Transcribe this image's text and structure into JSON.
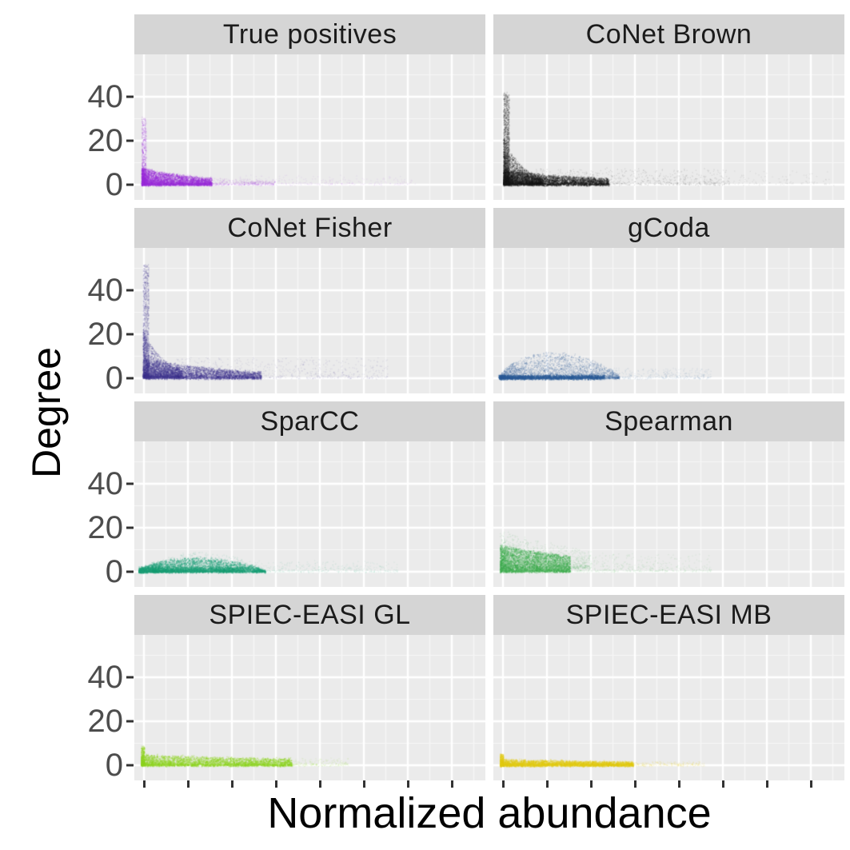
{
  "figure": {
    "x_axis_label": "Normalized abundance",
    "y_axis_label": "Degree",
    "y_tick_labels": [
      "40",
      "20",
      "0"
    ],
    "y_tick_values": [
      40,
      20,
      0
    ]
  },
  "style": {
    "panel_bg": "#EBEBEB",
    "strip_bg": "#D5D5D5",
    "grid_major": "#FFFFFF",
    "grid_minor": "rgba(255,255,255,0.6)",
    "tick_color": "#333333",
    "tick_label_color": "#4d4d4d"
  },
  "chart_data": {
    "type": "scatter",
    "layout": "facet-grid-4x2",
    "xlabel": "Normalized abundance",
    "ylabel": "Degree",
    "y_breaks": [
      0,
      20,
      40
    ],
    "ylim": [
      0,
      59
    ],
    "x_axis_numeric_labels": "none (ticks only)",
    "grid": "major white + minor white on grey panel",
    "facets": [
      {
        "title": "True positives",
        "color": "#9B30D9",
        "y_max_approx": 32,
        "x_tail_frac": 0.8,
        "shape": "dense low wedge at left (Degree 0-8), thin vertical spike to ~32 at lowest abundance, sparse tail rightward",
        "blobs": [
          {
            "n": 800,
            "x0": 0.02,
            "xw": 0.013,
            "xp": 1.1,
            "y0": 0.4,
            "ys": 30,
            "yp": 2.6,
            "a": 0.18,
            "s": 1.4
          },
          {
            "n": 3400,
            "x0": 0.02,
            "xw": 0.2,
            "xp": 1.5,
            "y0": 0.2,
            "ys": 7.5,
            "yp": 1.8,
            "dk": 1.0,
            "a": 0.3,
            "s": 1.5
          },
          {
            "n": 800,
            "x0": 0.07,
            "xw": 0.33,
            "xp": 1.3,
            "y0": 0.3,
            "ys": 6,
            "yp": 2.3,
            "dk": 1.4,
            "a": 0.12,
            "s": 1.4
          },
          {
            "n": 280,
            "x0": 0.3,
            "xw": 0.5,
            "xp": 1.2,
            "y0": 0.4,
            "ys": 4,
            "yp": 2.6,
            "a": 0.08,
            "s": 1.4
          }
        ]
      },
      {
        "title": "CoNet Brown",
        "color": "#1C1C1C",
        "y_max_approx": 42,
        "x_tail_frac": 0.95,
        "shape": "L-shaped black cloud: vertical spike to ~42 at lowest abundance, dense bottom band with long sparse tail",
        "blobs": [
          {
            "n": 1700,
            "x0": 0.028,
            "xw": 0.016,
            "xp": 1.1,
            "y0": 0.8,
            "ys": 41,
            "yp": 2.4,
            "a": 0.2,
            "s": 1.4
          },
          {
            "n": 2600,
            "x0": 0.028,
            "xw": 0.11,
            "xp": 1.5,
            "y0": 0.4,
            "ys": 21,
            "yp": 2.0,
            "dk": 2.0,
            "a": 0.22,
            "s": 1.4
          },
          {
            "n": 3000,
            "x0": 0.028,
            "xw": 0.3,
            "xp": 1.35,
            "y0": 0.2,
            "ys": 6.5,
            "yp": 1.7,
            "dk": 0.9,
            "a": 0.3,
            "s": 1.6
          },
          {
            "n": 800,
            "x0": 0.12,
            "xw": 0.55,
            "xp": 1.4,
            "y0": 0.4,
            "ys": 7,
            "yp": 2.6,
            "a": 0.1,
            "s": 1.4
          },
          {
            "n": 160,
            "x0": 0.5,
            "xw": 0.47,
            "xp": 1.1,
            "y0": 0.4,
            "ys": 6,
            "yp": 2.6,
            "a": 0.07,
            "s": 1.4
          }
        ]
      },
      {
        "title": "CoNet Fisher",
        "color": "#41368F",
        "y_max_approx": 52,
        "x_tail_frac": 0.9,
        "shape": "L-shaped indigo cloud: vertical spike to ~52, dense diagonal blob Degree 0-10 tapering rightward, sparse tail",
        "blobs": [
          {
            "n": 1500,
            "x0": 0.024,
            "xw": 0.016,
            "xp": 1.1,
            "y0": 0.8,
            "ys": 51,
            "yp": 2.3,
            "a": 0.18,
            "s": 1.4
          },
          {
            "n": 2300,
            "x0": 0.024,
            "xw": 0.11,
            "xp": 1.5,
            "y0": 0.6,
            "ys": 21,
            "yp": 1.9,
            "dk": 1.8,
            "a": 0.2,
            "s": 1.4
          },
          {
            "n": 2900,
            "x0": 0.03,
            "xw": 0.33,
            "xp": 1.3,
            "y0": 0.2,
            "ys": 8.5,
            "yp": 1.7,
            "dk": 1.1,
            "a": 0.28,
            "s": 1.6
          },
          {
            "n": 900,
            "x0": 0.12,
            "xw": 0.6,
            "xp": 1.45,
            "y0": 0.4,
            "ys": 9,
            "yp": 2.6,
            "a": 0.09,
            "s": 1.4
          }
        ]
      },
      {
        "title": "gCoda",
        "color": "#30619B",
        "y_max_approx": 12,
        "x_tail_frac": 0.6,
        "shape": "low blue mound hugging the bottom, peak Degree ~12, dense baseline at 0, sparse tail to mid panel",
        "blobs": [
          {
            "n": 1600,
            "x0": 0.015,
            "xw": 0.3,
            "xp": 1.25,
            "y0": 0.1,
            "ys": 1.3,
            "yp": 1.6,
            "a": 0.45,
            "s": 1.6
          },
          {
            "n": 3000,
            "x0": 0.018,
            "xw": 0.34,
            "xp": 1.2,
            "y0": 0.2,
            "ys": 11.5,
            "yp": 2.1,
            "bell": 1,
            "a": 0.2,
            "s": 1.4
          },
          {
            "n": 550,
            "x0": 0.2,
            "xw": 0.42,
            "xp": 1.3,
            "y0": 0.3,
            "ys": 4.5,
            "yp": 2.6,
            "a": 0.09,
            "s": 1.4
          }
        ]
      },
      {
        "title": "SparCC",
        "color": "#1FA179",
        "y_max_approx": 10,
        "x_tail_frac": 0.75,
        "shape": "flat teal band Degree 0-7 along bottom with gentle mound, sparse tail rightward",
        "blobs": [
          {
            "n": 3200,
            "x0": 0.012,
            "xw": 0.36,
            "xp": 1.3,
            "y0": 0.2,
            "ys": 6.2,
            "yp": 1.8,
            "bell": 1,
            "a": 0.3,
            "s": 1.6
          },
          {
            "n": 1500,
            "x0": 0.012,
            "xw": 0.3,
            "xp": 1.2,
            "y0": 0.15,
            "ys": 2,
            "yp": 1.6,
            "a": 0.35,
            "s": 1.5
          },
          {
            "n": 900,
            "x0": 0.05,
            "xw": 0.32,
            "xp": 1.3,
            "y0": 0.3,
            "ys": 9,
            "yp": 2.5,
            "bell": 1,
            "a": 0.11,
            "s": 1.4
          },
          {
            "n": 550,
            "x0": 0.25,
            "xw": 0.5,
            "xp": 1.3,
            "y0": 0.3,
            "ys": 4.5,
            "yp": 2.7,
            "a": 0.08,
            "s": 1.4
          }
        ]
      },
      {
        "title": "Spearman",
        "color": "#42AE52",
        "y_max_approx": 22,
        "x_tail_frac": 0.65,
        "shape": "thick green blob at left, Degree 0-15 dense (fuzz to ~22), tapering tail to mid panel",
        "blobs": [
          {
            "n": 3400,
            "x0": 0.018,
            "xw": 0.2,
            "xp": 1.3,
            "y0": 0.3,
            "ys": 12,
            "yp": 1.6,
            "dk": 0.55,
            "a": 0.3,
            "s": 1.6
          },
          {
            "n": 1100,
            "x0": 0.018,
            "xw": 0.26,
            "xp": 1.3,
            "y0": 2,
            "ys": 17,
            "yp": 2.4,
            "dk": 0.8,
            "a": 0.11,
            "s": 1.4
          },
          {
            "n": 750,
            "x0": 0.12,
            "xw": 0.5,
            "xp": 1.5,
            "y0": 0.4,
            "ys": 8,
            "yp": 2.5,
            "a": 0.09,
            "s": 1.4
          }
        ]
      },
      {
        "title": "SPIEC-EASI GL",
        "color": "#8ED320",
        "y_max_approx": 9,
        "x_tail_frac": 0.6,
        "shape": "thin yellow-green band Degree 0-5 along bottom, small spike to ~9 at lowest abundance",
        "blobs": [
          {
            "n": 450,
            "x0": 0.018,
            "xw": 0.01,
            "xp": 1,
            "y0": 0.3,
            "ys": 8.5,
            "yp": 2.0,
            "a": 0.28,
            "s": 1.4
          },
          {
            "n": 3400,
            "x0": 0.018,
            "xw": 0.43,
            "xp": 1.2,
            "y0": 0.15,
            "ys": 4.8,
            "yp": 1.9,
            "dk": 0.5,
            "a": 0.3,
            "s": 1.6
          },
          {
            "n": 500,
            "x0": 0.28,
            "xw": 0.33,
            "xp": 1.3,
            "y0": 0.2,
            "ys": 3,
            "yp": 2.3,
            "a": 0.1,
            "s": 1.4
          }
        ]
      },
      {
        "title": "SPIEC-EASI MB",
        "color": "#E3CB15",
        "y_max_approx": 5,
        "x_tail_frac": 0.55,
        "shape": "very thin gold streak Degree 0-3 along bottom, slightly taller (~5) at left edge",
        "blobs": [
          {
            "n": 350,
            "x0": 0.018,
            "xw": 0.01,
            "xp": 1,
            "y0": 0.2,
            "ys": 5,
            "yp": 2.0,
            "a": 0.33,
            "s": 1.4
          },
          {
            "n": 3200,
            "x0": 0.018,
            "xw": 0.38,
            "xp": 1.2,
            "y0": 0.12,
            "ys": 2.7,
            "yp": 2.0,
            "dk": 0.6,
            "a": 0.35,
            "s": 1.6
          },
          {
            "n": 420,
            "x0": 0.28,
            "xw": 0.32,
            "xp": 1.2,
            "y0": 0.15,
            "ys": 1.6,
            "yp": 2.2,
            "a": 0.12,
            "s": 1.4
          }
        ]
      }
    ]
  }
}
